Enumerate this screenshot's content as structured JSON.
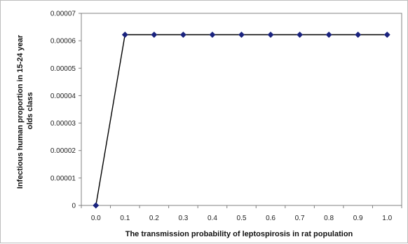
{
  "chart_data": {
    "type": "line",
    "title": "",
    "xlabel": "The transmission probability of leptospirosis in rat population",
    "ylabel_lines": [
      "Infectious human proportion in 15-24 year",
      "olds class"
    ],
    "x": [
      0.0,
      0.1,
      0.2,
      0.3,
      0.4,
      0.5,
      0.6,
      0.7,
      0.8,
      0.9,
      1.0
    ],
    "x_tick_labels": [
      "0.0",
      "0.1",
      "0.2",
      "0.3",
      "0.4",
      "0.5",
      "0.6",
      "0.7",
      "0.8",
      "0.9",
      "1.0"
    ],
    "series": [
      {
        "values": [
          0,
          6.22e-05,
          6.22e-05,
          6.22e-05,
          6.22e-05,
          6.22e-05,
          6.22e-05,
          6.22e-05,
          6.22e-05,
          6.22e-05,
          6.22e-05
        ],
        "line_color": "#000000",
        "marker_color": "#1a237e",
        "marker": "diamond"
      }
    ],
    "y_ticks": [
      0,
      1e-05,
      2e-05,
      3e-05,
      4e-05,
      5e-05,
      6e-05,
      7e-05
    ],
    "y_tick_labels": [
      "0",
      "0.00001",
      "0.00002",
      "0.00003",
      "0.00004",
      "0.00005",
      "0.00006",
      "0.00007"
    ],
    "ylim": [
      0,
      7e-05
    ],
    "grid": false,
    "legend": "none"
  }
}
